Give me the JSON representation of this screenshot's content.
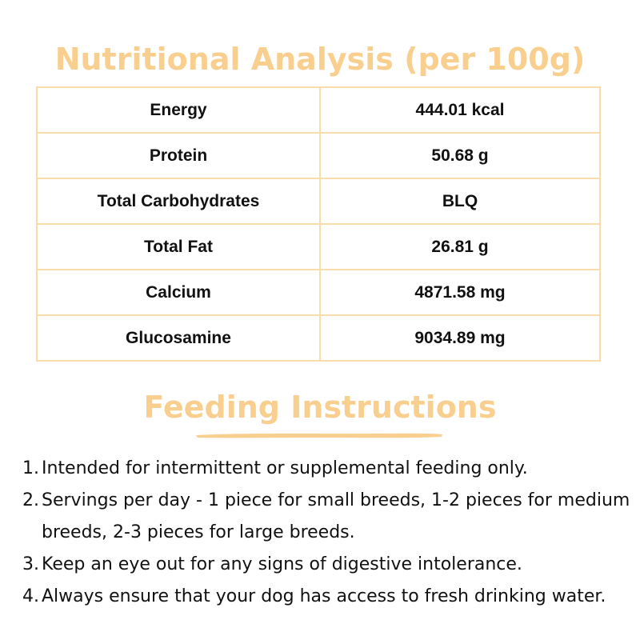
{
  "nutrition": {
    "title": "Nutritional Analysis (per 100g)",
    "rows": [
      {
        "label": "Energy",
        "value": "444.01 kcal"
      },
      {
        "label": "Protein",
        "value": "50.68 g"
      },
      {
        "label": "Total Carbohydrates",
        "value": "BLQ"
      },
      {
        "label": "Total Fat",
        "value": "26.81 g"
      },
      {
        "label": "Calcium",
        "value": "4871.58 mg"
      },
      {
        "label": "Glucosamine",
        "value": "9034.89 mg"
      }
    ]
  },
  "feeding": {
    "title": "Feeding Instructions",
    "items": [
      {
        "num": "1.",
        "text": "Intended for intermittent or supplemental feeding only."
      },
      {
        "num": "2.",
        "text": "Servings per day - 1 piece for small breeds, 1-2 pieces for medium breeds, 2-3 pieces for large breeds."
      },
      {
        "num": "3.",
        "text": "Keep an eye out for any signs of digestive intolerance."
      },
      {
        "num": "4.",
        "text": "Always ensure that your dog has access to fresh drinking water."
      }
    ]
  },
  "colors": {
    "accent": "#f8cf8f",
    "border": "#f8dcaa",
    "text": "#111111"
  }
}
